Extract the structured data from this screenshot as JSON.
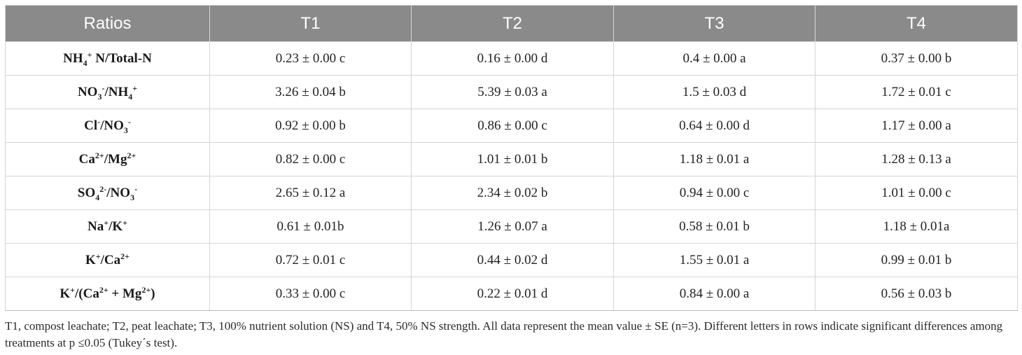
{
  "table": {
    "headers": [
      "Ratios",
      "T1",
      "T2",
      "T3",
      "T4"
    ],
    "rows": [
      {
        "label_parts": [
          [
            "NH",
            "n"
          ],
          [
            "4",
            "sub"
          ],
          [
            "+",
            "sup"
          ],
          [
            " N/Total-N",
            "n"
          ]
        ],
        "values": [
          "0.23 ± 0.00 c",
          "0.16 ± 0.00 d",
          "0.4 ± 0.00 a",
          "0.37 ± 0.00 b"
        ]
      },
      {
        "label_parts": [
          [
            "NO",
            "n"
          ],
          [
            "3",
            "sub"
          ],
          [
            "-",
            "sup"
          ],
          [
            "/NH",
            "n"
          ],
          [
            "4",
            "sub"
          ],
          [
            "+",
            "sup"
          ]
        ],
        "values": [
          "3.26 ± 0.04 b",
          "5.39 ± 0.03 a",
          "1.5 ± 0.03 d",
          "1.72 ± 0.01 c"
        ]
      },
      {
        "label_parts": [
          [
            "Cl",
            "n"
          ],
          [
            "-",
            "sup"
          ],
          [
            "/NO",
            "n"
          ],
          [
            "3",
            "sub"
          ],
          [
            "-",
            "sup"
          ]
        ],
        "values": [
          "0.92 ± 0.00 b",
          "0.86 ± 0.00 c",
          "0.64 ± 0.00 d",
          "1.17 ± 0.00 a"
        ]
      },
      {
        "label_parts": [
          [
            "Ca",
            "n"
          ],
          [
            "2+",
            "sup"
          ],
          [
            "/Mg",
            "n"
          ],
          [
            "2+",
            "sup"
          ]
        ],
        "values": [
          "0.82 ± 0.00 c",
          "1.01 ± 0.01 b",
          "1.18 ± 0.01 a",
          "1.28 ± 0.13 a"
        ]
      },
      {
        "label_parts": [
          [
            "SO",
            "n"
          ],
          [
            "4",
            "sub"
          ],
          [
            "2-",
            "sup"
          ],
          [
            "/NO",
            "n"
          ],
          [
            "3",
            "sub"
          ],
          [
            "-",
            "sup"
          ]
        ],
        "values": [
          "2.65 ± 0.12 a",
          "2.34 ± 0.02 b",
          "0.94 ± 0.00 c",
          "1.01 ± 0.00 c"
        ]
      },
      {
        "label_parts": [
          [
            "Na",
            "n"
          ],
          [
            "+",
            "sup"
          ],
          [
            "/K",
            "n"
          ],
          [
            "+",
            "sup"
          ]
        ],
        "values": [
          "0.61 ± 0.01b",
          "1.26 ± 0.07 a",
          "0.58 ± 0.01 b",
          "1.18 ± 0.01a"
        ]
      },
      {
        "label_parts": [
          [
            "K",
            "n"
          ],
          [
            "+",
            "sup"
          ],
          [
            "/Ca",
            "n"
          ],
          [
            "2+",
            "sup"
          ]
        ],
        "values": [
          "0.72 ± 0.01 c",
          "0.44 ± 0.02 d",
          "1.55 ± 0.01 a",
          "0.99 ± 0.01 b"
        ]
      },
      {
        "label_parts": [
          [
            "K",
            "n"
          ],
          [
            "+",
            "sup"
          ],
          [
            "/(Ca",
            "n"
          ],
          [
            "2+",
            "sup"
          ],
          [
            " + Mg",
            "n"
          ],
          [
            "2+",
            "sup"
          ],
          [
            ")",
            "n"
          ]
        ],
        "values": [
          "0.33 ± 0.00 c",
          "0.22 ± 0.01 d",
          "0.84 ± 0.00 a",
          "0.56 ± 0.03 b"
        ]
      }
    ]
  },
  "footnote": "T1, compost leachate; T2, peat leachate; T3, 100% nutrient solution (NS) and T4, 50% NS strength. All data represent the mean value ± SE (n=3). Different letters in rows indicate significant differences among treatments at p ≤0.05 (Tukey´s test).",
  "colors": {
    "header_bg": "#8a8a8a",
    "header_text": "#ffffff",
    "grid": "#d5d5d5"
  }
}
